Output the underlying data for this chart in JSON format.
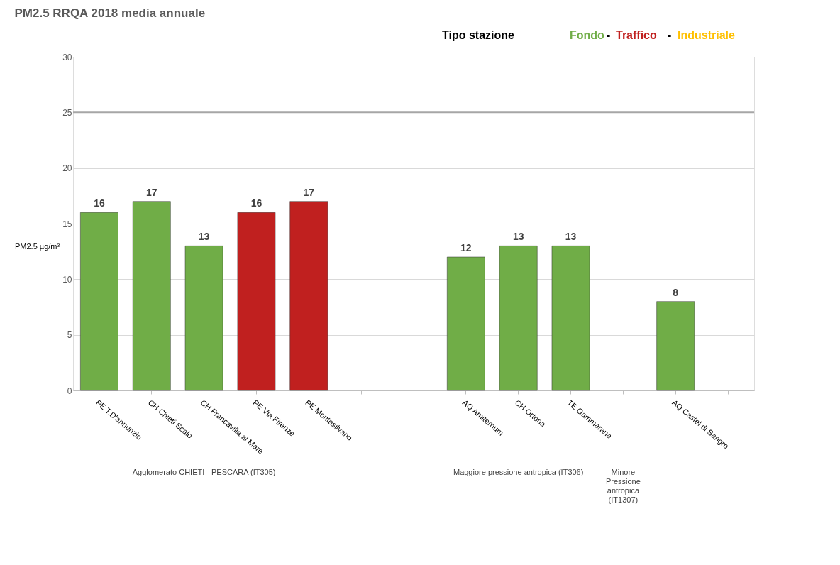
{
  "chart_data": {
    "type": "bar",
    "title": "PM2.5 RRQA  2018 media annuale",
    "ylabel": "PM2.5 µg/m³",
    "categories": [
      "PE T.D'annunzio",
      "CH Chieti Scalo",
      "CH Francavilla al Mare",
      "PE Via Firenze",
      "PE Montesilvano",
      null,
      null,
      "AQ Amiternum",
      "CH Ortona",
      "TE Gammarana",
      null,
      "AQ Castel di Sangro",
      null
    ],
    "values": [
      16,
      17,
      13,
      16,
      17,
      null,
      null,
      12,
      13,
      13,
      null,
      8,
      null
    ],
    "colors": [
      "#70ad47",
      "#70ad47",
      "#70ad47",
      "#c0201f",
      "#c0201f",
      null,
      null,
      "#70ad47",
      "#70ad47",
      "#70ad47",
      null,
      "#70ad47",
      null
    ],
    "ylim": [
      0,
      30
    ],
    "yticks": [
      0,
      5,
      10,
      15,
      20,
      25,
      30
    ],
    "grid": "y",
    "data_labels": true,
    "ref_lines": [
      {
        "axis": "y",
        "value": 25,
        "color": "#a6a6a6"
      }
    ],
    "annotations": [
      "Tipo stazione",
      "Fondo",
      "-",
      "Traffico",
      "-",
      "Industriale",
      "Agglomerato CHIETI - PESCARA (IT305)",
      "Maggiore pressione antropica (IT306)",
      "Minore\nPressione\nantropica\n(IT1307)"
    ]
  }
}
